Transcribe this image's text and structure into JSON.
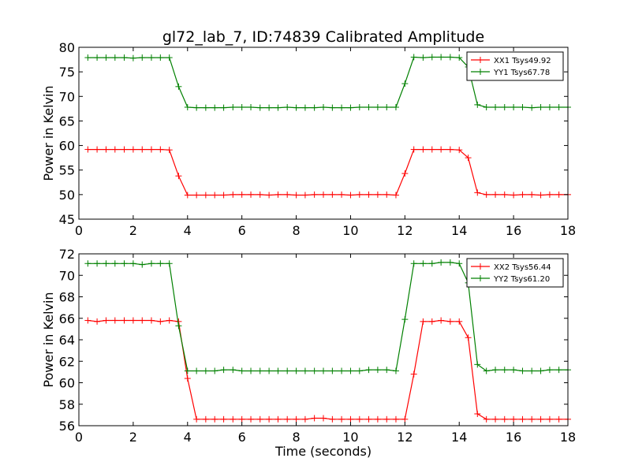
{
  "title": "gl72_lab_7, ID:74839 Calibrated Amplitude",
  "chart_data": [
    {
      "type": "line",
      "ylabel": "Power in Kelvin",
      "xlabel": "",
      "xlim": [
        0,
        18
      ],
      "ylim": [
        45,
        80
      ],
      "xticks": [
        "0",
        "2",
        "4",
        "6",
        "8",
        "10",
        "12",
        "14",
        "16",
        "18"
      ],
      "yticks": [
        "45",
        "50",
        "55",
        "60",
        "65",
        "70",
        "75",
        "80"
      ],
      "legend_position": "top-right",
      "marker": "plus",
      "x": [
        0.33,
        0.67,
        1.0,
        1.33,
        1.67,
        2.0,
        2.33,
        2.67,
        3.0,
        3.33,
        3.67,
        4.0,
        4.33,
        4.67,
        5.0,
        5.33,
        5.67,
        6.0,
        6.33,
        6.67,
        7.0,
        7.33,
        7.67,
        8.0,
        8.33,
        8.67,
        9.0,
        9.33,
        9.67,
        10.0,
        10.33,
        10.67,
        11.0,
        11.33,
        11.67,
        12.0,
        12.33,
        12.67,
        13.0,
        13.33,
        13.67,
        14.0,
        14.33,
        14.67,
        15.0,
        15.33,
        15.67,
        16.0,
        16.33,
        16.67,
        17.0,
        17.33,
        17.67,
        18.0
      ],
      "series": [
        {
          "name": "XX1 Tsys49.92",
          "color": "#ff0000",
          "values": [
            59.2,
            59.2,
            59.2,
            59.2,
            59.2,
            59.2,
            59.2,
            59.2,
            59.2,
            59.1,
            53.8,
            49.9,
            49.9,
            49.9,
            49.9,
            49.9,
            50.0,
            50.0,
            50.0,
            50.0,
            49.9,
            50.0,
            50.0,
            49.9,
            49.9,
            50.0,
            50.0,
            50.0,
            50.0,
            49.9,
            50.0,
            50.0,
            50.0,
            50.0,
            49.9,
            54.3,
            59.2,
            59.2,
            59.2,
            59.2,
            59.2,
            59.1,
            57.5,
            50.4,
            50.0,
            50.0,
            50.0,
            49.9,
            50.0,
            50.0,
            49.9,
            50.0,
            50.0,
            50.0
          ]
        },
        {
          "name": "YY1 Tsys67.78",
          "color": "#008000",
          "values": [
            77.9,
            77.9,
            77.9,
            77.9,
            77.9,
            77.8,
            77.9,
            77.9,
            77.9,
            77.9,
            72.0,
            67.8,
            67.7,
            67.7,
            67.7,
            67.7,
            67.8,
            67.8,
            67.8,
            67.7,
            67.7,
            67.7,
            67.8,
            67.7,
            67.7,
            67.7,
            67.8,
            67.7,
            67.7,
            67.7,
            67.8,
            67.8,
            67.8,
            67.8,
            67.8,
            72.6,
            78.0,
            77.9,
            78.0,
            78.0,
            78.0,
            77.9,
            76.0,
            68.3,
            67.8,
            67.8,
            67.8,
            67.8,
            67.8,
            67.7,
            67.8,
            67.8,
            67.8,
            67.8
          ]
        }
      ]
    },
    {
      "type": "line",
      "ylabel": "Power in Kelvin",
      "xlabel": "Time (seconds)",
      "xlim": [
        0,
        18
      ],
      "ylim": [
        56,
        72
      ],
      "xticks": [
        "0",
        "2",
        "4",
        "6",
        "8",
        "10",
        "12",
        "14",
        "16",
        "18"
      ],
      "yticks": [
        "56",
        "58",
        "60",
        "62",
        "64",
        "66",
        "68",
        "70",
        "72"
      ],
      "legend_position": "top-right",
      "marker": "plus",
      "x": [
        0.33,
        0.67,
        1.0,
        1.33,
        1.67,
        2.0,
        2.33,
        2.67,
        3.0,
        3.33,
        3.67,
        4.0,
        4.33,
        4.67,
        5.0,
        5.33,
        5.67,
        6.0,
        6.33,
        6.67,
        7.0,
        7.33,
        7.67,
        8.0,
        8.33,
        8.67,
        9.0,
        9.33,
        9.67,
        10.0,
        10.33,
        10.67,
        11.0,
        11.33,
        11.67,
        12.0,
        12.33,
        12.67,
        13.0,
        13.33,
        13.67,
        14.0,
        14.33,
        14.67,
        15.0,
        15.33,
        15.67,
        16.0,
        16.33,
        16.67,
        17.0,
        17.33,
        17.67,
        18.0
      ],
      "series": [
        {
          "name": "XX2 Tsys56.44",
          "color": "#ff0000",
          "values": [
            65.8,
            65.7,
            65.8,
            65.8,
            65.8,
            65.8,
            65.8,
            65.8,
            65.7,
            65.8,
            65.7,
            60.4,
            56.6,
            56.6,
            56.6,
            56.6,
            56.6,
            56.6,
            56.6,
            56.6,
            56.6,
            56.6,
            56.6,
            56.6,
            56.6,
            56.7,
            56.7,
            56.6,
            56.6,
            56.6,
            56.6,
            56.6,
            56.6,
            56.6,
            56.6,
            56.6,
            60.8,
            65.7,
            65.7,
            65.8,
            65.7,
            65.7,
            64.2,
            57.1,
            56.6,
            56.6,
            56.6,
            56.6,
            56.6,
            56.6,
            56.6,
            56.6,
            56.6,
            56.6
          ]
        },
        {
          "name": "YY2 Tsys61.20",
          "color": "#008000",
          "values": [
            71.1,
            71.1,
            71.1,
            71.1,
            71.1,
            71.1,
            71.0,
            71.1,
            71.1,
            71.1,
            65.3,
            61.1,
            61.1,
            61.1,
            61.1,
            61.2,
            61.2,
            61.1,
            61.1,
            61.1,
            61.1,
            61.1,
            61.1,
            61.1,
            61.1,
            61.1,
            61.1,
            61.1,
            61.1,
            61.1,
            61.1,
            61.2,
            61.2,
            61.2,
            61.1,
            65.9,
            71.1,
            71.1,
            71.1,
            71.2,
            71.2,
            71.1,
            69.3,
            61.7,
            61.1,
            61.2,
            61.2,
            61.2,
            61.1,
            61.1,
            61.1,
            61.2,
            61.2,
            61.2
          ]
        }
      ]
    }
  ]
}
